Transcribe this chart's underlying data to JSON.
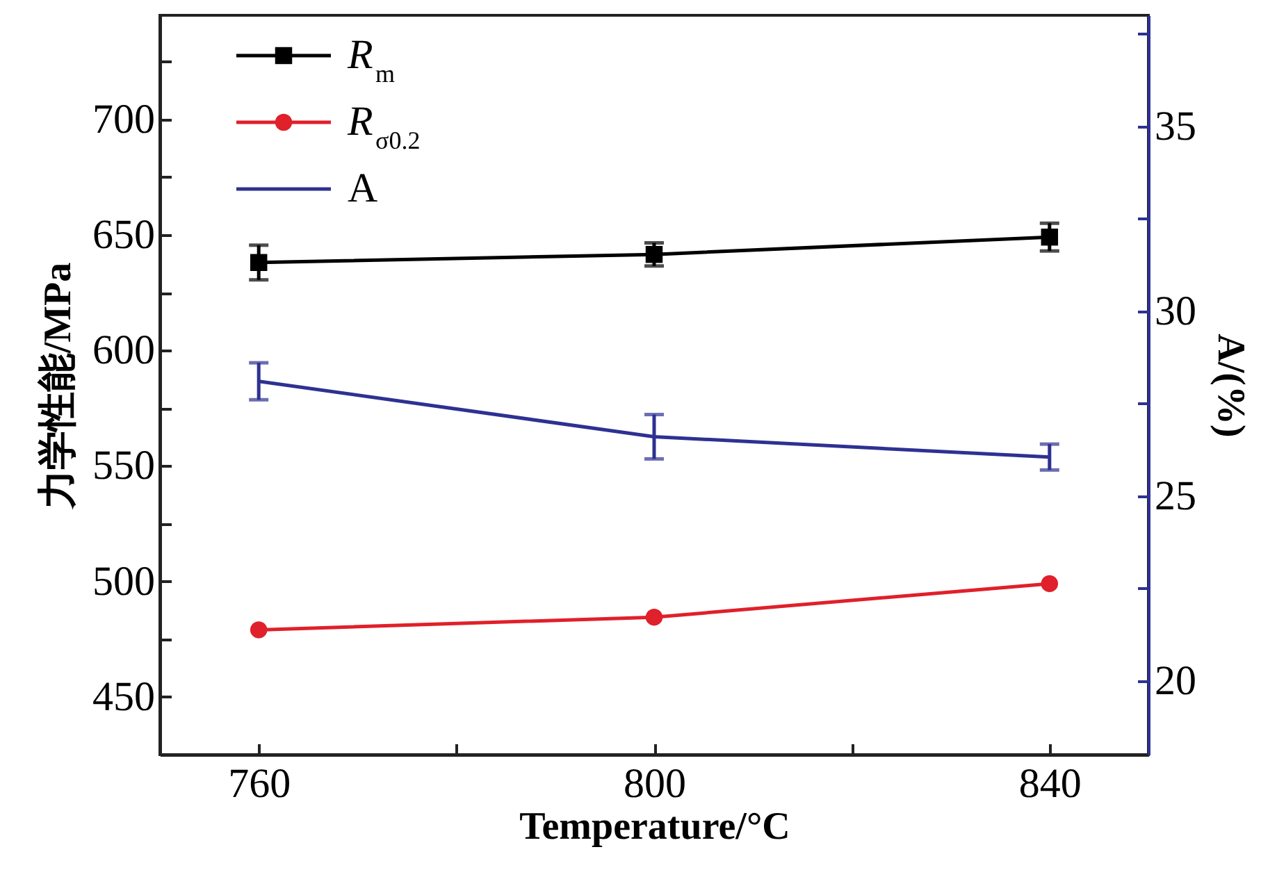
{
  "chart_data": {
    "type": "line",
    "xlabel": "Temperature/°C",
    "ylabel": "力学性能/MPa",
    "y2label": "A/(%)",
    "x": [
      760,
      800,
      840
    ],
    "xlim": [
      750,
      850
    ],
    "xticks": [
      760,
      {
        "value": 780,
        "label": null
      },
      800,
      {
        "value": 820,
        "label": null
      },
      840
    ],
    "ylim": [
      425,
      745
    ],
    "yticks": [
      450,
      {
        "value": 475,
        "label": null
      },
      500,
      {
        "value": 525,
        "label": null
      },
      550,
      {
        "value": 575,
        "label": null
      },
      600,
      {
        "value": 625,
        "label": null
      },
      650,
      {
        "value": 675,
        "label": null
      },
      700,
      {
        "value": 725,
        "label": null
      }
    ],
    "y2lim": [
      18,
      38
    ],
    "y2ticks": [
      20,
      {
        "value": 22.5,
        "label": null
      },
      25,
      {
        "value": 27.5,
        "label": null
      },
      30,
      {
        "value": 32.5,
        "label": null
      },
      35,
      {
        "value": 37.5,
        "label": null
      }
    ],
    "legend": "top left",
    "grid": false,
    "series": [
      {
        "name": "R$_{m}$",
        "color": "#000000",
        "marker": "square",
        "values": [
          638,
          641.5,
          649
        ],
        "errors": [
          7.5,
          5,
          6
        ]
      },
      {
        "name": "R$_{σ0.2}$",
        "color": "#e0202a",
        "marker": "circle",
        "values": [
          479,
          484.5,
          499
        ]
      },
      {
        "name": "A",
        "color": "#2e3192",
        "marker": "none",
        "axis": "y2",
        "values": [
          28.1,
          26.6,
          26.05
        ],
        "errors": [
          0.5,
          0.6,
          0.35
        ]
      }
    ]
  }
}
